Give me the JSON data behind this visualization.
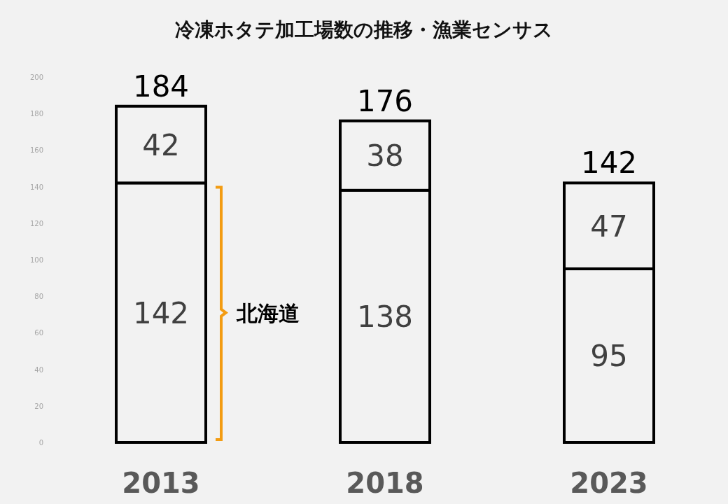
{
  "chart_data": {
    "type": "bar",
    "title": "冷凍ホタテ加工場数の推移・漁業センサス",
    "categories": [
      "2013",
      "2018",
      "2023"
    ],
    "stacked": true,
    "series": [
      {
        "color": "#f2f2f2",
        "values": [
          142,
          138,
          95
        ]
      },
      {
        "color": "#f2f2f2",
        "values": [
          42,
          38,
          47
        ]
      }
    ],
    "totals": [
      "184",
      "176",
      "142"
    ],
    "data_labels": true,
    "ylim": [
      0,
      200
    ],
    "yticks": [
      0,
      20,
      40,
      60,
      80,
      100,
      120,
      140,
      160,
      180,
      200
    ],
    "grid": false,
    "annotations": [
      "北海道"
    ]
  }
}
